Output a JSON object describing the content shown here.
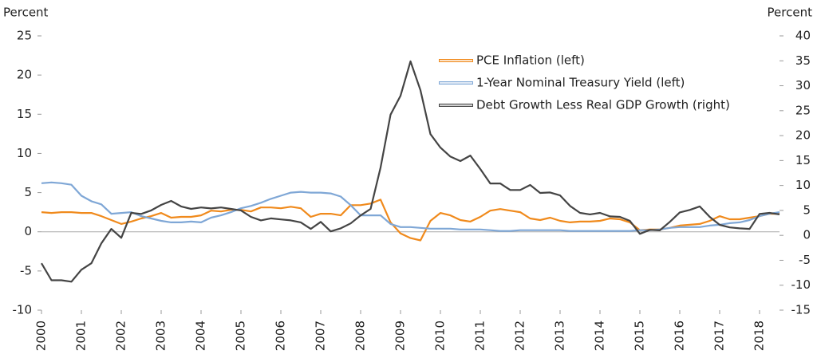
{
  "chart_data": {
    "type": "line",
    "ylabel": "Percent",
    "y2label": "Percent",
    "x": [
      2000,
      2000.25,
      2000.5,
      2000.75,
      2001,
      2001.25,
      2001.5,
      2001.75,
      2002,
      2002.25,
      2002.5,
      2002.75,
      2003,
      2003.25,
      2003.5,
      2003.75,
      2004,
      2004.25,
      2004.5,
      2004.75,
      2005,
      2005.25,
      2005.5,
      2005.75,
      2006,
      2006.25,
      2006.5,
      2006.75,
      2007,
      2007.25,
      2007.5,
      2007.75,
      2008,
      2008.25,
      2008.5,
      2008.75,
      2009,
      2009.25,
      2009.5,
      2009.75,
      2010,
      2010.25,
      2010.5,
      2010.75,
      2011,
      2011.25,
      2011.5,
      2011.75,
      2012,
      2012.25,
      2012.5,
      2012.75,
      2013,
      2013.25,
      2013.5,
      2013.75,
      2014,
      2014.25,
      2014.5,
      2014.75,
      2015,
      2015.25,
      2015.5,
      2015.75,
      2016,
      2016.25,
      2016.5,
      2016.75,
      2017,
      2017.25,
      2017.5,
      2017.75,
      2018,
      2018.25,
      2018.5
    ],
    "xlim": [
      2000,
      2018.5
    ],
    "xticks": [
      2000,
      2001,
      2002,
      2003,
      2004,
      2005,
      2006,
      2007,
      2008,
      2009,
      2010,
      2011,
      2012,
      2013,
      2014,
      2015,
      2016,
      2017,
      2018
    ],
    "ylim": [
      -10,
      25
    ],
    "yticks": [
      -10,
      -5,
      0,
      5,
      10,
      15,
      20,
      25
    ],
    "y2lim": [
      -15,
      40
    ],
    "y2ticks": [
      -15,
      -10,
      -5,
      0,
      5,
      10,
      15,
      20,
      25,
      30,
      35,
      40
    ],
    "grid": false,
    "series": [
      {
        "name": "PCE Inflation (left)",
        "color": "#f08a1c",
        "values": [
          2.5,
          2.4,
          2.5,
          2.5,
          2.4,
          2.4,
          2.0,
          1.5,
          1.0,
          1.3,
          1.7,
          2.0,
          2.4,
          1.8,
          1.9,
          1.9,
          2.1,
          2.7,
          2.6,
          2.8,
          2.8,
          2.6,
          3.1,
          3.1,
          3.0,
          3.2,
          3.0,
          1.9,
          2.3,
          2.3,
          2.1,
          3.4,
          3.4,
          3.6,
          4.1,
          1.2,
          -0.2,
          -0.8,
          -1.1,
          1.4,
          2.4,
          2.1,
          1.5,
          1.3,
          1.9,
          2.7,
          2.9,
          2.7,
          2.5,
          1.7,
          1.5,
          1.8,
          1.4,
          1.2,
          1.3,
          1.3,
          1.4,
          1.7,
          1.6,
          1.2,
          0.2,
          0.3,
          0.3,
          0.5,
          0.8,
          0.9,
          1.0,
          1.4,
          2.0,
          1.6,
          1.6,
          1.8,
          2.0,
          2.3,
          2.3
        ]
      },
      {
        "name": "1-Year Nominal Treasury Yield (left)",
        "color": "#7fa7d6",
        "values": [
          6.2,
          6.3,
          6.2,
          6.0,
          4.6,
          3.9,
          3.5,
          2.3,
          2.4,
          2.5,
          2.0,
          1.7,
          1.4,
          1.2,
          1.2,
          1.3,
          1.2,
          1.8,
          2.1,
          2.5,
          3.0,
          3.3,
          3.7,
          4.2,
          4.6,
          5.0,
          5.1,
          5.0,
          5.0,
          4.9,
          4.5,
          3.4,
          2.1,
          2.1,
          2.1,
          1.0,
          0.6,
          0.6,
          0.5,
          0.4,
          0.4,
          0.4,
          0.3,
          0.3,
          0.3,
          0.2,
          0.1,
          0.1,
          0.2,
          0.2,
          0.2,
          0.2,
          0.2,
          0.1,
          0.1,
          0.1,
          0.1,
          0.1,
          0.1,
          0.1,
          0.2,
          0.2,
          0.3,
          0.5,
          0.6,
          0.6,
          0.6,
          0.8,
          0.9,
          1.1,
          1.2,
          1.5,
          2.0,
          2.3,
          2.5
        ]
      },
      {
        "name": "Debt Growth Less Real GDP Growth (right)",
        "color": "#444444",
        "axis": "y2",
        "values": [
          -5.6,
          -9,
          -9,
          -9.3,
          -6.9,
          -5.6,
          -1.6,
          1.3,
          -0.5,
          4.5,
          4.3,
          5.0,
          6.1,
          6.9,
          5.8,
          5.3,
          5.6,
          5.4,
          5.6,
          5.3,
          5.0,
          3.7,
          3.0,
          3.4,
          3.2,
          3.0,
          2.6,
          1.3,
          2.7,
          0.8,
          1.4,
          2.4,
          4.0,
          5.3,
          13.6,
          24.2,
          28,
          34.9,
          29.1,
          20.3,
          17.6,
          15.8,
          14.9,
          16,
          13.3,
          10.4,
          10.4,
          9.1,
          9.1,
          10.1,
          8.5,
          8.6,
          8.0,
          5.9,
          4.5,
          4.2,
          4.5,
          3.8,
          3.7,
          2.9,
          0.3,
          1.1,
          1.0,
          2.7,
          4.6,
          5.1,
          5.8,
          3.7,
          2.1,
          1.6,
          1.4,
          1.3,
          4.3,
          4.5,
          4.2
        ]
      }
    ]
  }
}
